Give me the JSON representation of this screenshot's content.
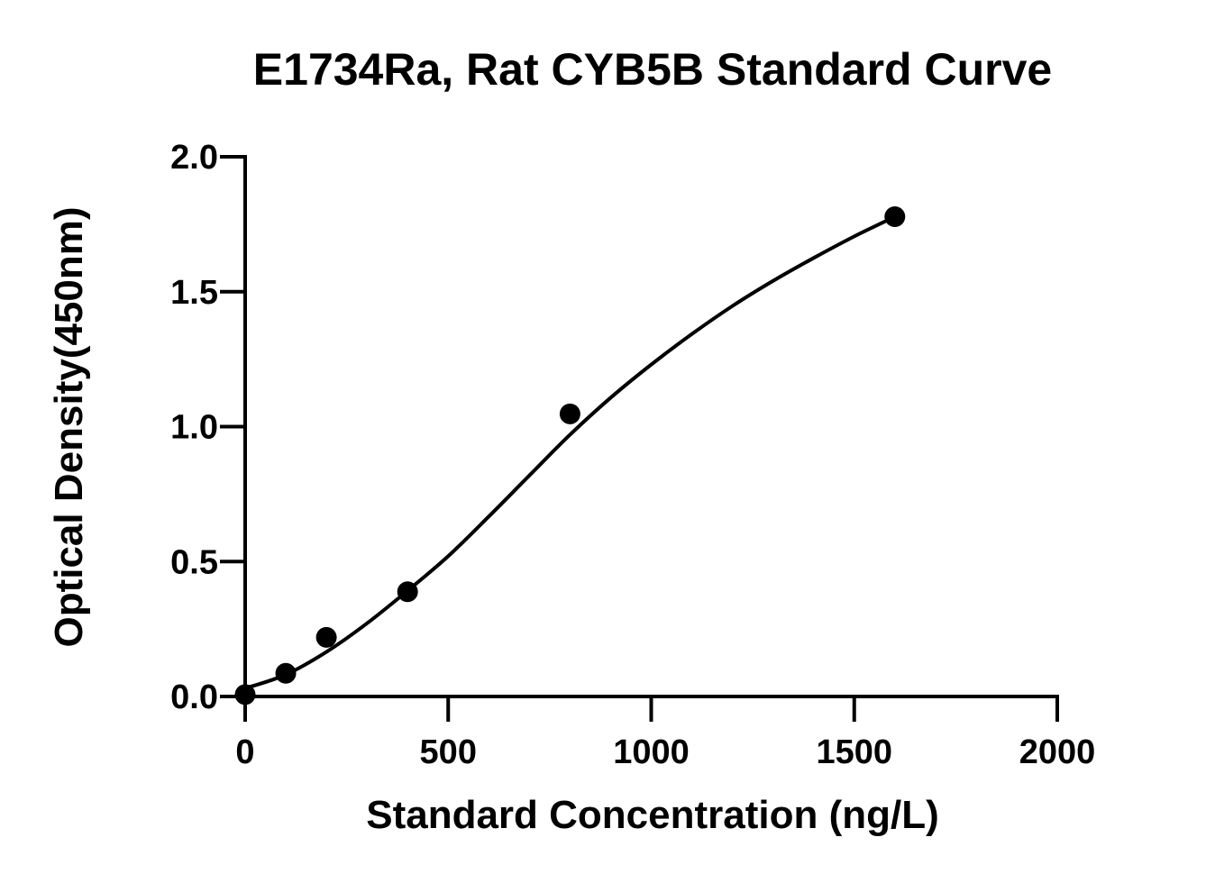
{
  "chart_data": {
    "type": "scatter",
    "title": "E1734Ra, Rat CYB5B Standard Curve",
    "xlabel": "Standard Concentration (ng/L)",
    "ylabel": "Optical Density(450nm)",
    "xlim": [
      0,
      2000
    ],
    "ylim": [
      0,
      2.0
    ],
    "x_ticks": [
      "0",
      "500",
      "1000",
      "1500",
      "2000"
    ],
    "y_ticks": [
      "0.0",
      "0.5",
      "1.0",
      "1.5",
      "2.0"
    ],
    "x_tick_values": [
      0,
      500,
      1000,
      1500,
      2000
    ],
    "y_tick_values": [
      0,
      0.5,
      1.0,
      1.5,
      2.0
    ],
    "grid": false,
    "legend": "none",
    "series": [
      {
        "x": [
          0,
          100,
          200,
          400,
          800,
          1600
        ],
        "y": [
          0.007,
          0.086,
          0.219,
          0.388,
          1.047,
          1.778
        ],
        "marker": "filled-circle",
        "color": "#000000",
        "fit": "4PL",
        "fit_points": [
          {
            "x": 0,
            "y": 0.03
          },
          {
            "x": 100,
            "y": 0.081
          },
          {
            "x": 200,
            "y": 0.165
          },
          {
            "x": 300,
            "y": 0.271
          },
          {
            "x": 400,
            "y": 0.392
          },
          {
            "x": 500,
            "y": 0.52
          },
          {
            "x": 600,
            "y": 0.667
          },
          {
            "x": 700,
            "y": 0.819
          },
          {
            "x": 800,
            "y": 0.97
          },
          {
            "x": 900,
            "y": 1.107
          },
          {
            "x": 1000,
            "y": 1.23
          },
          {
            "x": 1100,
            "y": 1.343
          },
          {
            "x": 1200,
            "y": 1.447
          },
          {
            "x": 1300,
            "y": 1.54
          },
          {
            "x": 1400,
            "y": 1.625
          },
          {
            "x": 1500,
            "y": 1.705
          },
          {
            "x": 1600,
            "y": 1.778
          }
        ]
      }
    ]
  }
}
